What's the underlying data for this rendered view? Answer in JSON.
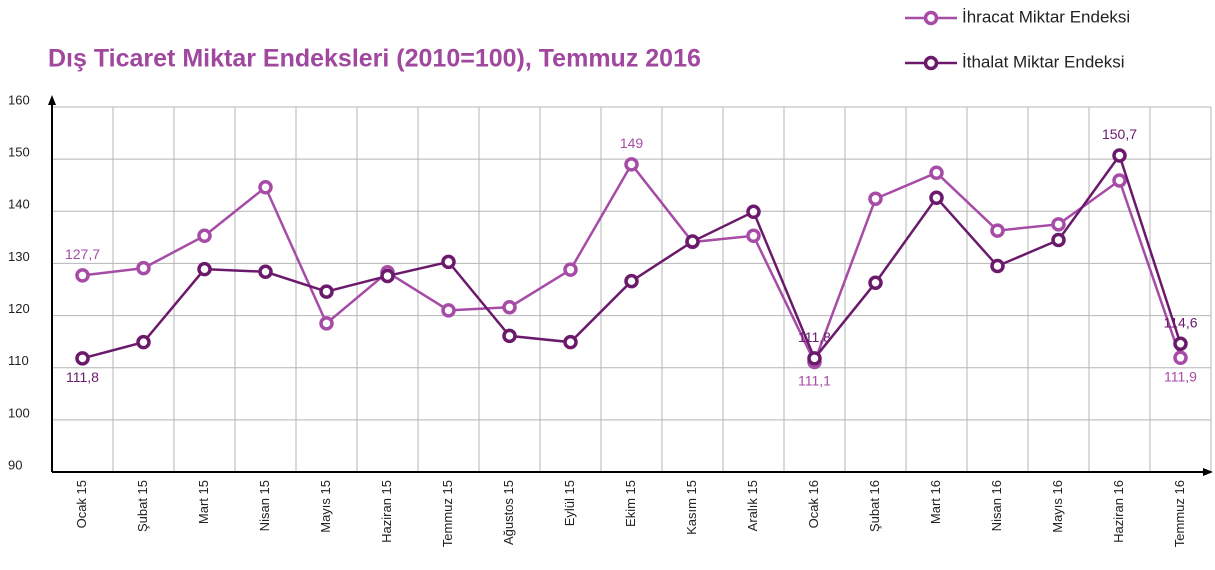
{
  "chart_data": {
    "type": "line",
    "title": "Dış Ticaret Miktar Endeksleri (2010=100), Temmuz 2016",
    "categories": [
      "Ocak 15",
      "Şubat 15",
      "Mart 15",
      "Nisan 15",
      "Mayıs 15",
      "Haziran 15",
      "Temmuz 15",
      "Ağustos 15",
      "Eylül 15",
      "Ekim 15",
      "Kasım 15",
      "Aralık 15",
      "Ocak 16",
      "Şubat 16",
      "Mart 16",
      "Nisan 16",
      "Mayıs 16",
      "Haziran 16",
      "Temmuz 16"
    ],
    "series": [
      {
        "name": "İhracat Miktar Endeksi",
        "color": "#a64ca6",
        "values": [
          127.7,
          129.1,
          135.3,
          144.6,
          118.5,
          128.3,
          121.0,
          121.6,
          128.8,
          149,
          134.1,
          135.3,
          111.1,
          142.4,
          147.4,
          136.3,
          137.5,
          145.9,
          111.9
        ],
        "value_labels": [
          "127,7",
          null,
          null,
          null,
          null,
          null,
          null,
          null,
          null,
          "149",
          null,
          null,
          "111,1",
          null,
          null,
          null,
          null,
          null,
          "111,9"
        ]
      },
      {
        "name": "İthalat Miktar Endeksi",
        "color": "#6b1a6b",
        "values": [
          111.8,
          114.9,
          128.9,
          128.4,
          124.6,
          127.6,
          130.3,
          116.1,
          114.9,
          126.6,
          134.2,
          139.9,
          111.8,
          126.3,
          142.6,
          129.5,
          134.5,
          150.7,
          114.6
        ],
        "value_labels": [
          "111,8",
          null,
          null,
          null,
          null,
          null,
          null,
          null,
          null,
          null,
          null,
          null,
          "111,8",
          null,
          null,
          null,
          null,
          "150,7",
          "114,6"
        ]
      }
    ],
    "ylim": [
      90,
      160
    ],
    "yticks": [
      90,
      100,
      110,
      120,
      130,
      140,
      150,
      160
    ],
    "grid": true
  }
}
